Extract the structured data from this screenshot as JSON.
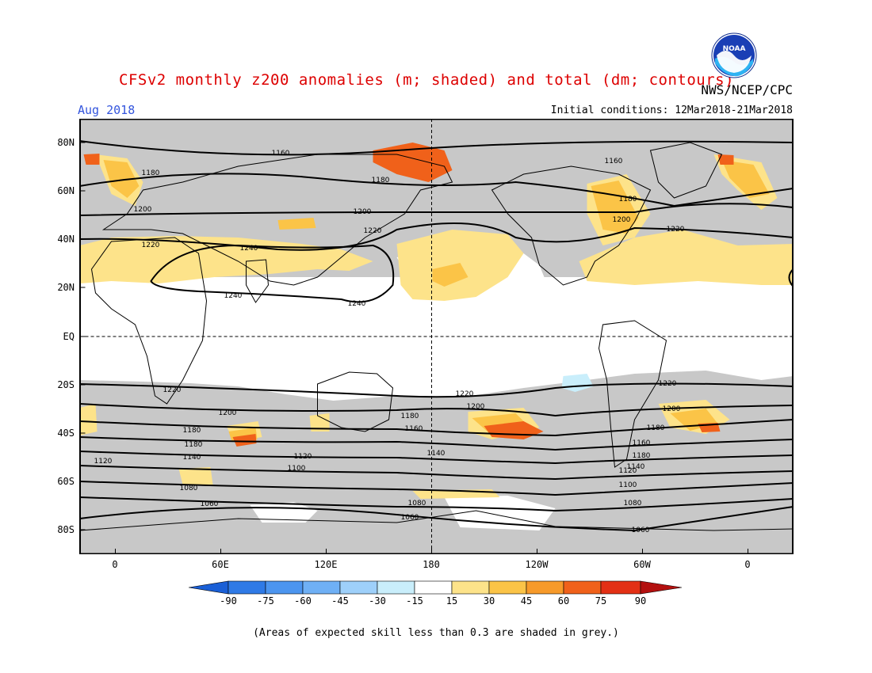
{
  "header": {
    "title": "CFSv2 monthly z200 anomalies (m; shaded) and total (dm; contours)",
    "agency": "NWS/NCEP/CPC",
    "logo_text": "NOAA",
    "month": "Aug 2018",
    "initial_conditions": "Initial conditions: 12Mar2018-21Mar2018"
  },
  "map": {
    "lat_labels": [
      "80N",
      "60N",
      "40N",
      "20N",
      "EQ",
      "20S",
      "40S",
      "60S",
      "80S"
    ],
    "lon_labels": [
      "0",
      "60E",
      "120E",
      "180",
      "120W",
      "60W",
      "0"
    ],
    "contour_labels": [
      "1160",
      "1180",
      "1180",
      "1160",
      "1180",
      "1200",
      "1200",
      "1200",
      "1220",
      "1220",
      "1220",
      "1240",
      "1240",
      "1240",
      "1220",
      "1220",
      "1220",
      "1200",
      "1200",
      "1200",
      "1180",
      "1180",
      "1180",
      "1180",
      "1160",
      "1160",
      "1180",
      "1140",
      "1140",
      "1140",
      "1120",
      "1120",
      "1120",
      "1100",
      "1100",
      "1080",
      "1080",
      "1080",
      "1060",
      "1060",
      "1060"
    ],
    "skill_mask_color": "#c8c8c8",
    "land_outline_color": "#000000"
  },
  "colorbar": {
    "labels": [
      "-90",
      "-75",
      "-60",
      "-45",
      "-30",
      "-15",
      "15",
      "30",
      "45",
      "60",
      "75",
      "90"
    ],
    "colors": [
      "#1a5fd6",
      "#2f7ae6",
      "#4c95ef",
      "#6fb0f5",
      "#9ed0fa",
      "#c9eefb",
      "#ffffff",
      "#fde38a",
      "#fbc447",
      "#f79a2a",
      "#f0611a",
      "#e33015",
      "#b3100f"
    ]
  },
  "footnote": "(Areas of expected skill less than 0.3 are shaded in grey.)"
}
